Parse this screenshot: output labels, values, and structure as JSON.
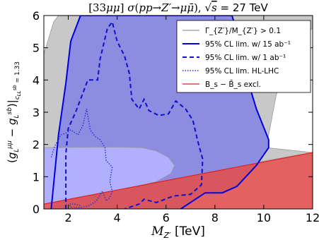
{
  "chart_data": {
    "type": "area",
    "title": "[33μμ] σ(pp→Z′→μμ̄), √s = 27 TeV",
    "xlabel": "M_{Z′} [TeV]",
    "ylabel": "(g_L^{μμ} − g_L^{sb}) |_{c_{LL}^{sb} = 1.33}",
    "xlim": [
      1,
      12
    ],
    "ylim": [
      0,
      6
    ],
    "x_ticks": [
      2,
      4,
      6,
      8,
      10,
      12
    ],
    "y_ticks": [
      0,
      1,
      2,
      3,
      4,
      5,
      6
    ],
    "x_tick_labels": [
      "2",
      "4",
      "6",
      "8",
      "10",
      "12"
    ],
    "y_tick_labels": [
      "0",
      "1",
      "2",
      "3",
      "4",
      "5",
      "6"
    ],
    "grid": false,
    "legend_position": "top-right",
    "colors": {
      "width_region": "#c8c8c8",
      "hl_lhc_fill": "#b0b0ff",
      "lim15_fill": "#8c8ce0",
      "bs_fill": "#e05050",
      "lim15_line": "#0000dd",
      "lim1_line": "#1010cc",
      "hl_line": "#3030dd",
      "bs_line": "#dd2222",
      "width_line": "#999999"
    },
    "series": [
      {
        "name": "Γ_{Z′}/M_{Z′} > 0.1",
        "style": "gray-fill",
        "points": [
          [
            12,
            1.75
          ],
          [
            10.1,
            1.9
          ],
          [
            10.5,
            3.5
          ],
          [
            11.2,
            5.2
          ],
          [
            12,
            5.6
          ],
          [
            12,
            6
          ],
          [
            8.7,
            6
          ],
          [
            7.6,
            6
          ],
          [
            6.4,
            6
          ],
          [
            5.5,
            6
          ],
          [
            4.0,
            6
          ],
          [
            2.6,
            6
          ],
          [
            1.6,
            6
          ],
          [
            1.4,
            5.8
          ],
          [
            1.2,
            5.3
          ],
          [
            1.0,
            4.8
          ],
          [
            1.0,
            0.15
          ],
          [
            4.0,
            0.55
          ],
          [
            7.0,
            0.95
          ],
          [
            10.1,
            1.5
          ],
          [
            12,
            1.75
          ]
        ]
      },
      {
        "name": "95% CL lim. w/ 15 ab⁻¹",
        "style": "solid",
        "points": [
          [
            1.3,
            0.0
          ],
          [
            1.6,
            2.3
          ],
          [
            1.9,
            3.9
          ],
          [
            2.1,
            5.2
          ],
          [
            2.5,
            6.0
          ],
          [
            8.7,
            6.0
          ],
          [
            8.9,
            5.5
          ],
          [
            9.3,
            4.1
          ],
          [
            9.7,
            3.1
          ],
          [
            10.2,
            2.15
          ],
          [
            10.2,
            1.9
          ],
          [
            9.7,
            1.35
          ],
          [
            8.9,
            0.7
          ],
          [
            8.3,
            0.5
          ],
          [
            7.6,
            0.5
          ],
          [
            6.6,
            0.0
          ]
        ]
      },
      {
        "name": "95% CL lim. w/ 1 ab⁻¹",
        "style": "dashed",
        "points": [
          [
            1.9,
            0.0
          ],
          [
            1.9,
            1.7
          ],
          [
            2.0,
            2.5
          ],
          [
            2.3,
            3.0
          ],
          [
            2.8,
            4.0
          ],
          [
            3.2,
            4.0
          ],
          [
            3.3,
            4.65
          ],
          [
            3.6,
            5.6
          ],
          [
            3.8,
            5.8
          ],
          [
            4.0,
            5.2
          ],
          [
            4.3,
            4.75
          ],
          [
            4.5,
            4.2
          ],
          [
            4.6,
            3.4
          ],
          [
            4.9,
            3.1
          ],
          [
            5.1,
            3.4
          ],
          [
            5.3,
            3.05
          ],
          [
            5.7,
            2.9
          ],
          [
            6.1,
            2.95
          ],
          [
            6.4,
            3.35
          ],
          [
            6.8,
            3.1
          ],
          [
            7.1,
            2.75
          ],
          [
            7.3,
            2.1
          ],
          [
            7.5,
            1.55
          ],
          [
            7.45,
            0.75
          ],
          [
            7.0,
            0.45
          ],
          [
            6.3,
            0.4
          ],
          [
            5.6,
            0.2
          ],
          [
            5.1,
            0.3
          ],
          [
            4.9,
            0.15
          ],
          [
            4.5,
            0.05
          ],
          [
            4.3,
            0.0
          ]
        ]
      },
      {
        "name": "95% CL lim. HL-LHC",
        "style": "dotted",
        "points": [
          [
            1.3,
            1.6
          ],
          [
            1.45,
            1.95
          ],
          [
            1.7,
            2.3
          ],
          [
            1.9,
            2.35
          ],
          [
            2.1,
            2.45
          ],
          [
            2.4,
            2.3
          ],
          [
            2.6,
            2.6
          ],
          [
            2.75,
            3.1
          ],
          [
            2.9,
            2.45
          ],
          [
            3.1,
            2.25
          ],
          [
            3.3,
            2.15
          ],
          [
            3.5,
            1.9
          ],
          [
            3.55,
            1.5
          ],
          [
            3.8,
            1.3
          ],
          [
            3.7,
            0.85
          ],
          [
            3.8,
            0.55
          ],
          [
            3.7,
            0.35
          ],
          [
            3.55,
            0.25
          ],
          [
            3.4,
            0.55
          ],
          [
            3.15,
            0.25
          ],
          [
            2.85,
            0.1
          ],
          [
            2.55,
            0.05
          ],
          [
            2.35,
            0.05
          ],
          [
            2.1,
            0.05
          ],
          [
            2.05,
            0.15
          ],
          [
            2.25,
            0.15
          ],
          [
            2.5,
            0.1
          ]
        ]
      },
      {
        "name": "HL-LHC excluded fill",
        "style": "light-fill",
        "points": [
          [
            1.0,
            1.9
          ],
          [
            4.0,
            1.92
          ],
          [
            5.0,
            1.9
          ],
          [
            5.6,
            1.8
          ],
          [
            6.1,
            1.6
          ],
          [
            6.35,
            1.35
          ],
          [
            6.2,
            1.1
          ],
          [
            5.6,
            0.85
          ],
          [
            4.0,
            0.55
          ],
          [
            1.0,
            0.15
          ]
        ]
      },
      {
        "name": "B_s − B̄_s excl.",
        "style": "red-fill",
        "points": [
          [
            1.0,
            0.15
          ],
          [
            12.0,
            1.75
          ],
          [
            12.0,
            0.0
          ],
          [
            1.0,
            0.0
          ]
        ]
      }
    ]
  },
  "legend": {
    "items": [
      {
        "label": "Γ_{Z′}/M_{Z′} > 0.1",
        "key": "width"
      },
      {
        "label": "95% CL lim. w/ 15 ab⁻¹",
        "key": "lim15"
      },
      {
        "label": "95% CL lim. w/ 1 ab⁻¹",
        "key": "lim1"
      },
      {
        "label": "95% CL lim. HL-LHC",
        "key": "hl"
      },
      {
        "label": "B_s − B̄_s excl.",
        "key": "bs"
      }
    ]
  }
}
